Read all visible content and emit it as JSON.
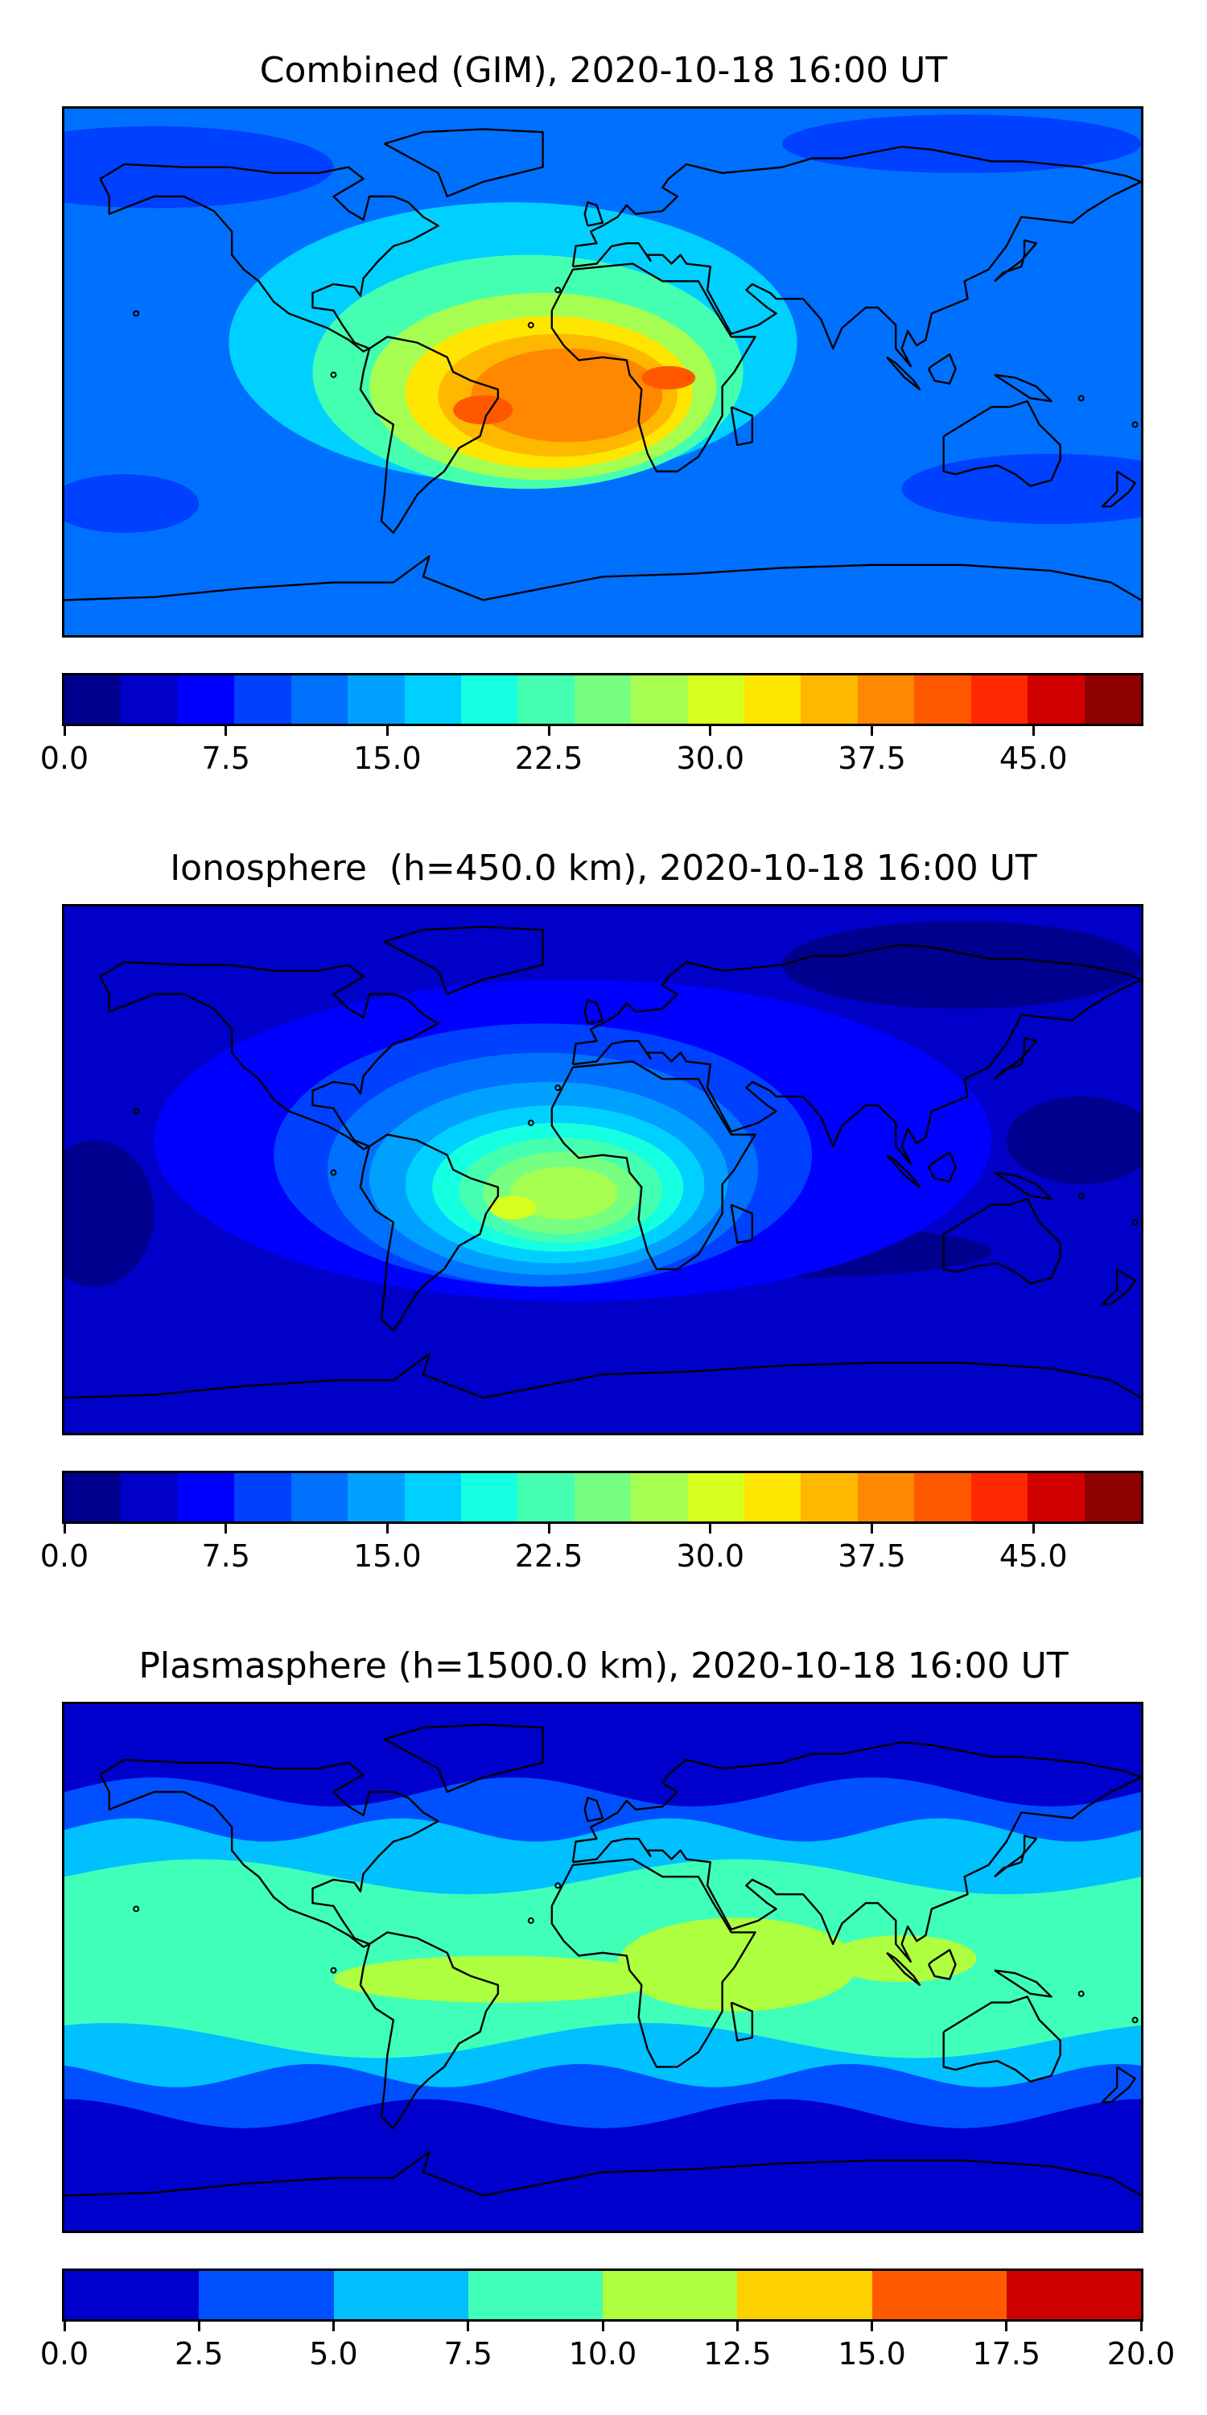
{
  "panels": [
    {
      "title": "Combined (GIM), 2020-10-18 16:00 UT",
      "variable": "Combined (GIM)",
      "colorbar": {
        "range": [
          0,
          50
        ],
        "step": 2.5,
        "ticks": [
          "0.0",
          "7.5",
          "15.0",
          "22.5",
          "30.0",
          "37.5",
          "45.0"
        ],
        "tick_values": [
          0,
          7.5,
          15,
          22.5,
          30,
          37.5,
          45
        ],
        "colors": [
          "#00008f",
          "#0000c9",
          "#0000ff",
          "#0040ff",
          "#0070ff",
          "#00a0ff",
          "#00d0ff",
          "#15ffe1",
          "#45ffb1",
          "#76ff80",
          "#a6ff50",
          "#d6ff20",
          "#ffe600",
          "#ffb800",
          "#ff8800",
          "#ff5800",
          "#ff2800",
          "#d00000",
          "#8f0000"
        ]
      },
      "field": {
        "background_level": 4,
        "features": [
          {
            "type": "blob",
            "lon": -30,
            "lat": 10,
            "rx": 95,
            "ry": 48,
            "level": 6
          },
          {
            "type": "blob",
            "lon": -25,
            "lat": 0,
            "rx": 72,
            "ry": 40,
            "level": 8
          },
          {
            "type": "blob",
            "lon": -20,
            "lat": -5,
            "rx": 58,
            "ry": 32,
            "level": 10
          },
          {
            "type": "blob",
            "lon": -18,
            "lat": -7,
            "rx": 48,
            "ry": 26,
            "level": 12
          },
          {
            "type": "blob",
            "lon": -15,
            "lat": -8,
            "rx": 40,
            "ry": 21,
            "level": 13
          },
          {
            "type": "blob",
            "lon": -12,
            "lat": -8,
            "rx": 32,
            "ry": 16,
            "level": 14
          },
          {
            "type": "blob",
            "lon": -40,
            "lat": -13,
            "rx": 10,
            "ry": 5,
            "level": 15
          },
          {
            "type": "blob",
            "lon": 22,
            "lat": -2,
            "rx": 9,
            "ry": 4,
            "level": 15
          },
          {
            "type": "blob",
            "lon": -150,
            "lat": 70,
            "rx": 60,
            "ry": 14,
            "level": 3
          },
          {
            "type": "blob",
            "lon": 150,
            "lat": -40,
            "rx": 50,
            "ry": 12,
            "level": 3
          },
          {
            "type": "blob",
            "lon": -160,
            "lat": -45,
            "rx": 25,
            "ry": 10,
            "level": 3
          },
          {
            "type": "blob",
            "lon": 120,
            "lat": 78,
            "rx": 60,
            "ry": 10,
            "level": 3
          }
        ]
      }
    },
    {
      "title": "Ionosphere  (h=450.0 km), 2020-10-18 16:00 UT",
      "variable": "Ionosphere",
      "colorbar": {
        "range": [
          0,
          50
        ],
        "step": 2.5,
        "ticks": [
          "0.0",
          "7.5",
          "15.0",
          "22.5",
          "30.0",
          "37.5",
          "45.0"
        ],
        "tick_values": [
          0,
          7.5,
          15,
          22.5,
          30,
          37.5,
          45
        ],
        "colors": [
          "#00008f",
          "#0000c9",
          "#0000ff",
          "#0040ff",
          "#0070ff",
          "#00a0ff",
          "#00d0ff",
          "#15ffe1",
          "#45ffb1",
          "#76ff80",
          "#a6ff50",
          "#d6ff20",
          "#ffe600",
          "#ffb800",
          "#ff8800",
          "#ff5800",
          "#ff2800",
          "#d00000",
          "#8f0000"
        ]
      },
      "field": {
        "background_level": 1,
        "features": [
          {
            "type": "blob",
            "lon": -10,
            "lat": 10,
            "rx": 140,
            "ry": 55,
            "level": 2
          },
          {
            "type": "blob",
            "lon": -20,
            "lat": 5,
            "rx": 90,
            "ry": 45,
            "level": 3
          },
          {
            "type": "blob",
            "lon": -20,
            "lat": 0,
            "rx": 72,
            "ry": 40,
            "level": 4
          },
          {
            "type": "blob",
            "lon": -18,
            "lat": -3,
            "rx": 60,
            "ry": 33,
            "level": 5
          },
          {
            "type": "blob",
            "lon": -16,
            "lat": -5,
            "rx": 50,
            "ry": 27,
            "level": 6
          },
          {
            "type": "blob",
            "lon": -15,
            "lat": -6,
            "rx": 42,
            "ry": 22,
            "level": 7
          },
          {
            "type": "blob",
            "lon": -14,
            "lat": -7,
            "rx": 34,
            "ry": 18,
            "level": 8
          },
          {
            "type": "blob",
            "lon": -14,
            "lat": -8,
            "rx": 26,
            "ry": 14,
            "level": 9
          },
          {
            "type": "blob",
            "lon": -13,
            "lat": -8,
            "rx": 18,
            "ry": 9,
            "level": 10
          },
          {
            "type": "blob",
            "lon": -30,
            "lat": -13,
            "rx": 8,
            "ry": 4,
            "level": 11
          },
          {
            "type": "blob",
            "lon": 60,
            "lat": -28,
            "rx": 70,
            "ry": 9,
            "level": 0
          },
          {
            "type": "blob",
            "lon": -170,
            "lat": -15,
            "rx": 20,
            "ry": 25,
            "level": 0
          },
          {
            "type": "blob",
            "lon": 120,
            "lat": 70,
            "rx": 60,
            "ry": 15,
            "level": 0
          },
          {
            "type": "blob",
            "lon": 160,
            "lat": 10,
            "rx": 25,
            "ry": 15,
            "level": 0
          }
        ]
      }
    },
    {
      "title": "Plasmasphere (h=1500.0 km), 2020-10-18 16:00 UT",
      "variable": "Plasmasphere",
      "colorbar": {
        "range": [
          0,
          20
        ],
        "step": 2.5,
        "ticks": [
          "0.0",
          "2.5",
          "5.0",
          "7.5",
          "10.0",
          "12.5",
          "15.0",
          "17.5",
          "20.0"
        ],
        "tick_values": [
          0,
          2.5,
          5,
          7.5,
          10,
          12.5,
          15,
          17.5,
          20
        ],
        "colors": [
          "#0000cd",
          "#0050ff",
          "#00c0ff",
          "#40ffb8",
          "#adff40",
          "#ffd000",
          "#ff5a00",
          "#cd0000"
        ]
      },
      "field": {
        "background_level": 0,
        "features": [
          {
            "type": "band",
            "lat": 5,
            "half_width": 55,
            "level": 1,
            "amp": 5,
            "waves": 3
          },
          {
            "type": "band",
            "lat": 5,
            "half_width": 42,
            "level": 2,
            "amp": 4,
            "waves": 4
          },
          {
            "type": "band",
            "lat": 3,
            "half_width": 28,
            "level": 3,
            "amp": 6,
            "waves": 2
          },
          {
            "type": "blob",
            "lon": -35,
            "lat": -4,
            "rx": 55,
            "ry": 8,
            "level": 4
          },
          {
            "type": "blob",
            "lon": 45,
            "lat": 1,
            "rx": 40,
            "ry": 16,
            "level": 4
          },
          {
            "type": "blob",
            "lon": 100,
            "lat": 3,
            "rx": 25,
            "ry": 8,
            "level": 4
          }
        ]
      }
    }
  ]
}
